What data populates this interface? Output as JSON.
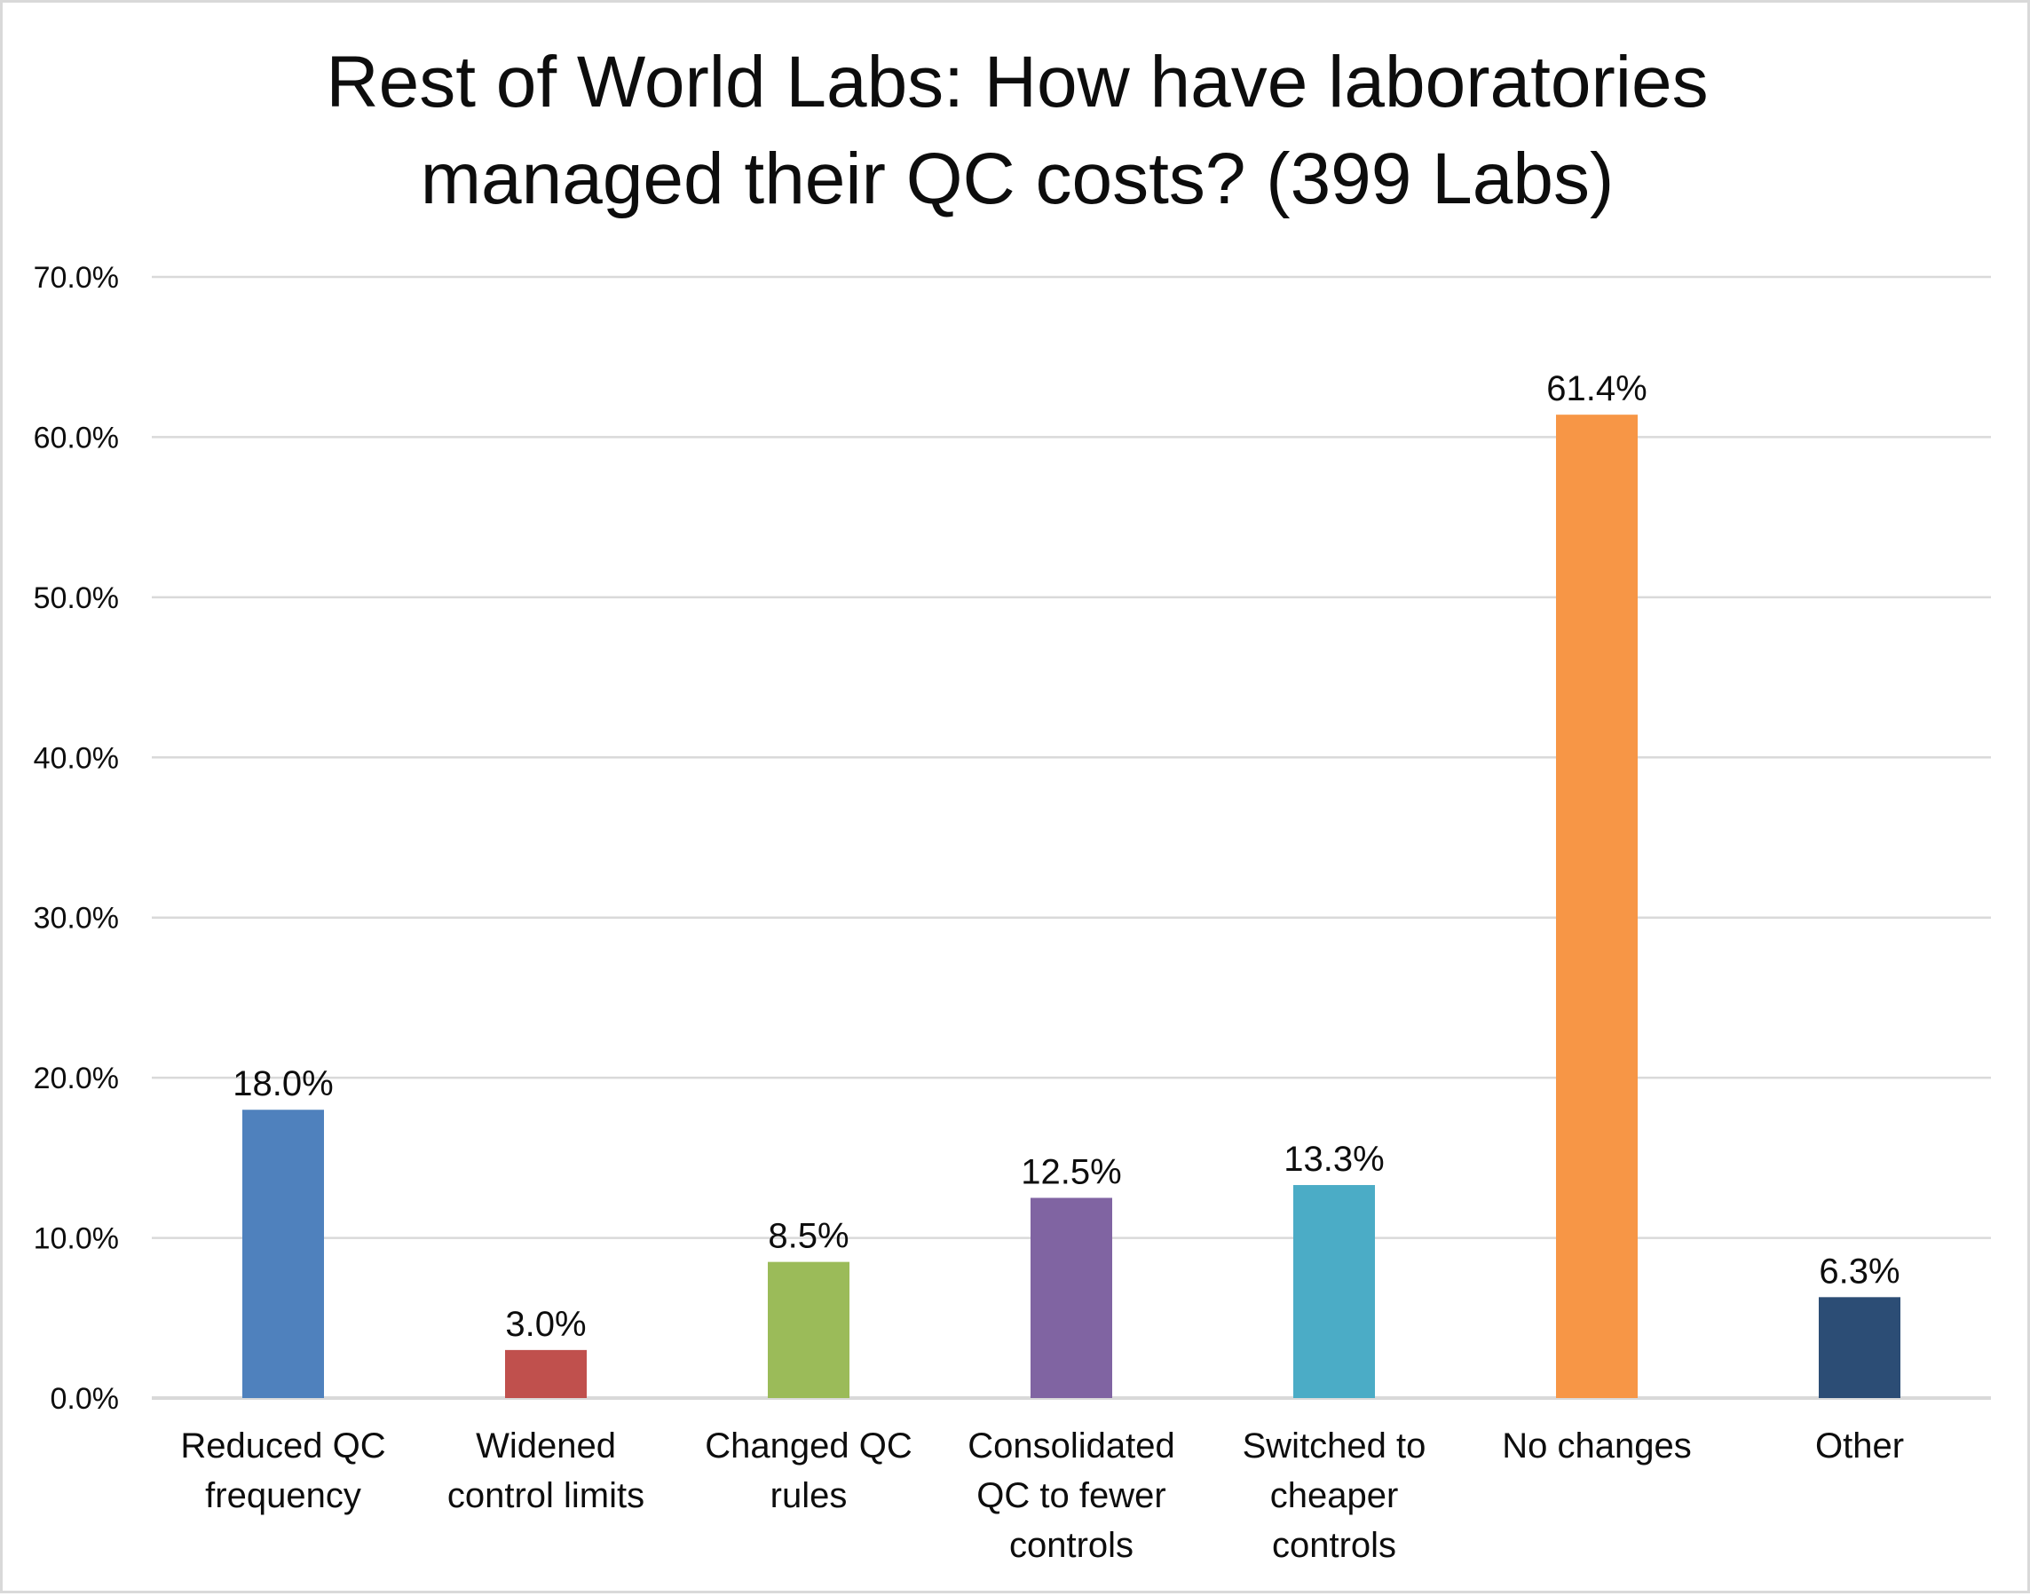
{
  "chart_data": {
    "type": "bar",
    "title": [
      "Rest of World Labs: How have laboratories",
      "managed their QC costs? (399 Labs)"
    ],
    "xlabel": "",
    "ylabel": "",
    "ylim": [
      0,
      70
    ],
    "yticks": [
      "0.0%",
      "10.0%",
      "20.0%",
      "30.0%",
      "40.0%",
      "50.0%",
      "60.0%",
      "70.0%"
    ],
    "grid": true,
    "legend": "none",
    "categories": [
      [
        "Reduced QC",
        "frequency"
      ],
      [
        "Widened",
        "control limits"
      ],
      [
        "Changed QC",
        "rules"
      ],
      [
        "Consolidated",
        "QC to fewer",
        "controls"
      ],
      [
        "Switched to",
        "cheaper",
        "controls"
      ],
      [
        "No changes"
      ],
      [
        "Other"
      ]
    ],
    "values": [
      18.0,
      3.0,
      8.5,
      12.5,
      13.3,
      61.4,
      6.3
    ],
    "data_labels": [
      "18.0%",
      "3.0%",
      "8.5%",
      "12.5%",
      "13.3%",
      "61.4%",
      "6.3%"
    ],
    "colors": [
      "#4F81BD",
      "#C0504D",
      "#9BBB59",
      "#8064A2",
      "#4BACC6",
      "#F79646",
      "#2C4D75"
    ]
  }
}
